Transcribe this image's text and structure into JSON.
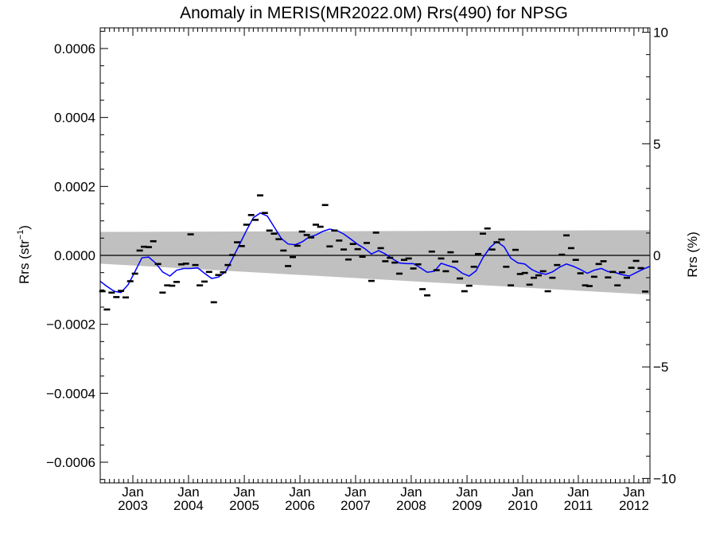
{
  "chart_data": {
    "type": "scatter",
    "title": "Anomaly in MERIS(MR2022.0M) Rrs(490) for NPSG",
    "ylabel_left": "Rrs (str",
    "ylabel_left_sup": "−1",
    "ylabel_left_close": ")",
    "ylabel_right": "Rrs (%)",
    "x_range": [
      "2002-06-01",
      "2012-04-15"
    ],
    "ylim_left": [
      -0.00066,
      0.00066
    ],
    "ylim_right": [
      -10.2,
      10.2
    ],
    "left_ticks": [
      {
        "value": 0.0006,
        "label": "0.0006"
      },
      {
        "value": 0.0004,
        "label": "0.0004"
      },
      {
        "value": 0.0002,
        "label": "0.0002"
      },
      {
        "value": 0.0,
        "label": "0.0000"
      },
      {
        "value": -0.0002,
        "label": "−0.0002"
      },
      {
        "value": -0.0004,
        "label": "−0.0004"
      },
      {
        "value": -0.0006,
        "label": "−0.0006"
      }
    ],
    "right_ticks": [
      {
        "value": 10,
        "label": "10"
      },
      {
        "value": 5,
        "label": "5"
      },
      {
        "value": 0,
        "label": "0"
      },
      {
        "value": -5,
        "label": "−5"
      },
      {
        "value": -10,
        "label": "−10"
      }
    ],
    "x_ticks": [
      {
        "date": "2003-01-01",
        "month": "Jan",
        "year": "2003"
      },
      {
        "date": "2004-01-01",
        "month": "Jan",
        "year": "2004"
      },
      {
        "date": "2005-01-01",
        "month": "Jan",
        "year": "2005"
      },
      {
        "date": "2006-01-01",
        "month": "Jan",
        "year": "2006"
      },
      {
        "date": "2007-01-01",
        "month": "Jan",
        "year": "2007"
      },
      {
        "date": "2008-01-01",
        "month": "Jan",
        "year": "2008"
      },
      {
        "date": "2009-01-01",
        "month": "Jan",
        "year": "2009"
      },
      {
        "date": "2010-01-01",
        "month": "Jan",
        "year": "2010"
      },
      {
        "date": "2011-01-01",
        "month": "Jan",
        "year": "2011"
      },
      {
        "date": "2012-01-01",
        "month": "Jan",
        "year": "2012"
      }
    ],
    "band": {
      "color": "#c0c0c0",
      "upper": [
        {
          "date": "2002-06-01",
          "y": 6.8e-05
        },
        {
          "date": "2012-04-15",
          "y": 7.3e-05
        }
      ],
      "lower": [
        {
          "date": "2002-06-01",
          "y": -2.4e-05
        },
        {
          "date": "2012-04-15",
          "y": -0.000114
        }
      ]
    },
    "zero_line": true,
    "smoothed_color": "#0000ff",
    "marker_color": "#000000",
    "monthly_points": [
      {
        "date": "2002-06-15",
        "y": -0.000104
      },
      {
        "date": "2002-07-15",
        "y": -0.000157
      },
      {
        "date": "2002-08-15",
        "y": -0.000108
      },
      {
        "date": "2002-09-15",
        "y": -0.000121
      },
      {
        "date": "2002-10-15",
        "y": -0.000103
      },
      {
        "date": "2002-11-15",
        "y": -0.000122
      },
      {
        "date": "2002-12-15",
        "y": -7.5e-05
      },
      {
        "date": "2003-01-15",
        "y": -5.3e-05
      },
      {
        "date": "2003-02-15",
        "y": 1.4e-05
      },
      {
        "date": "2003-03-15",
        "y": 2.5e-05
      },
      {
        "date": "2003-04-15",
        "y": 2.4e-05
      },
      {
        "date": "2003-05-15",
        "y": 4.1e-05
      },
      {
        "date": "2003-06-15",
        "y": -2.5e-05
      },
      {
        "date": "2003-07-15",
        "y": -0.000108
      },
      {
        "date": "2003-08-15",
        "y": -8.7e-05
      },
      {
        "date": "2003-09-15",
        "y": -8.8e-05
      },
      {
        "date": "2003-10-15",
        "y": -7.7e-05
      },
      {
        "date": "2003-11-15",
        "y": -2.6e-05
      },
      {
        "date": "2003-12-15",
        "y": -2.4e-05
      },
      {
        "date": "2004-01-15",
        "y": 6.1e-05
      },
      {
        "date": "2004-02-15",
        "y": -2.8e-05
      },
      {
        "date": "2004-03-15",
        "y": -8.7e-05
      },
      {
        "date": "2004-04-15",
        "y": -7.6e-05
      },
      {
        "date": "2004-05-15",
        "y": -4.8e-05
      },
      {
        "date": "2004-06-15",
        "y": -0.000136
      },
      {
        "date": "2004-07-15",
        "y": -5.7e-05
      },
      {
        "date": "2004-08-15",
        "y": -4.9e-05
      },
      {
        "date": "2004-09-15",
        "y": -2.8e-05
      },
      {
        "date": "2004-10-15",
        "y": 1e-06
      },
      {
        "date": "2004-11-15",
        "y": 3.8e-05
      },
      {
        "date": "2004-12-15",
        "y": 2.7e-05
      },
      {
        "date": "2005-01-15",
        "y": 8.9e-05
      },
      {
        "date": "2005-02-15",
        "y": 0.000117
      },
      {
        "date": "2005-03-15",
        "y": 0.000103
      },
      {
        "date": "2005-04-15",
        "y": 0.000174
      },
      {
        "date": "2005-05-15",
        "y": 0.000123
      },
      {
        "date": "2005-06-15",
        "y": 7.2e-05
      },
      {
        "date": "2005-07-15",
        "y": 6.3e-05
      },
      {
        "date": "2005-08-15",
        "y": 4.7e-05
      },
      {
        "date": "2005-09-15",
        "y": 1.4e-05
      },
      {
        "date": "2005-10-15",
        "y": -3.1e-05
      },
      {
        "date": "2005-11-15",
        "y": -5e-06
      },
      {
        "date": "2005-12-15",
        "y": 2.8e-05
      },
      {
        "date": "2006-01-15",
        "y": 6.9e-05
      },
      {
        "date": "2006-02-15",
        "y": 5.9e-05
      },
      {
        "date": "2006-03-15",
        "y": 5.2e-05
      },
      {
        "date": "2006-04-15",
        "y": 8.9e-05
      },
      {
        "date": "2006-05-15",
        "y": 8.3e-05
      },
      {
        "date": "2006-06-15",
        "y": 0.000146
      },
      {
        "date": "2006-07-15",
        "y": 2.6e-05
      },
      {
        "date": "2006-08-15",
        "y": 7.2e-05
      },
      {
        "date": "2006-09-15",
        "y": 4.3e-05
      },
      {
        "date": "2006-10-15",
        "y": 1.7e-05
      },
      {
        "date": "2006-11-15",
        "y": -1.2e-05
      },
      {
        "date": "2006-12-15",
        "y": 3.3e-05
      },
      {
        "date": "2007-01-15",
        "y": 1.8e-05
      },
      {
        "date": "2007-02-15",
        "y": -4e-06
      },
      {
        "date": "2007-03-15",
        "y": 3.6e-05
      },
      {
        "date": "2007-04-15",
        "y": -7.4e-05
      },
      {
        "date": "2007-05-15",
        "y": 6.6e-05
      },
      {
        "date": "2007-06-15",
        "y": 2.1e-05
      },
      {
        "date": "2007-07-15",
        "y": -1.7e-05
      },
      {
        "date": "2007-08-15",
        "y": -7e-06
      },
      {
        "date": "2007-09-15",
        "y": -2.1e-05
      },
      {
        "date": "2007-10-15",
        "y": -5.3e-05
      },
      {
        "date": "2007-11-15",
        "y": -1.3e-05
      },
      {
        "date": "2007-12-15",
        "y": -9e-06
      },
      {
        "date": "2008-01-15",
        "y": -3.8e-05
      },
      {
        "date": "2008-02-15",
        "y": -2.6e-05
      },
      {
        "date": "2008-03-15",
        "y": -9.8e-05
      },
      {
        "date": "2008-04-15",
        "y": -0.000116
      },
      {
        "date": "2008-05-15",
        "y": 1.1e-05
      },
      {
        "date": "2008-06-15",
        "y": -4.3e-05
      },
      {
        "date": "2008-07-15",
        "y": -9e-06
      },
      {
        "date": "2008-08-15",
        "y": -4.6e-05
      },
      {
        "date": "2008-09-15",
        "y": 9e-06
      },
      {
        "date": "2008-10-15",
        "y": -1.8e-05
      },
      {
        "date": "2008-11-15",
        "y": -6.7e-05
      },
      {
        "date": "2008-12-15",
        "y": -0.000104
      },
      {
        "date": "2009-01-15",
        "y": -8.8e-05
      },
      {
        "date": "2009-02-15",
        "y": -3.3e-05
      },
      {
        "date": "2009-03-15",
        "y": 4e-06
      },
      {
        "date": "2009-04-15",
        "y": 6.3e-05
      },
      {
        "date": "2009-05-15",
        "y": 7.8e-05
      },
      {
        "date": "2009-06-15",
        "y": 1.7e-05
      },
      {
        "date": "2009-07-15",
        "y": 3.8e-05
      },
      {
        "date": "2009-08-15",
        "y": 4.6e-05
      },
      {
        "date": "2009-09-15",
        "y": -3.3e-05
      },
      {
        "date": "2009-10-15",
        "y": -8.7e-05
      },
      {
        "date": "2009-11-15",
        "y": 1.6e-05
      },
      {
        "date": "2009-12-15",
        "y": -5.4e-05
      },
      {
        "date": "2010-01-15",
        "y": -5.1e-05
      },
      {
        "date": "2010-02-15",
        "y": -8.5e-05
      },
      {
        "date": "2010-03-15",
        "y": -6.5e-05
      },
      {
        "date": "2010-04-15",
        "y": -5.8e-05
      },
      {
        "date": "2010-05-15",
        "y": -4.6e-05
      },
      {
        "date": "2010-06-15",
        "y": -0.000104
      },
      {
        "date": "2010-07-15",
        "y": -6.5e-05
      },
      {
        "date": "2010-08-15",
        "y": -2.8e-05
      },
      {
        "date": "2010-09-15",
        "y": 2e-06
      },
      {
        "date": "2010-10-15",
        "y": 5.8e-05
      },
      {
        "date": "2010-11-15",
        "y": 2.1e-05
      },
      {
        "date": "2010-12-15",
        "y": -1.3e-05
      },
      {
        "date": "2011-01-15",
        "y": -5.2e-05
      },
      {
        "date": "2011-02-15",
        "y": -8.7e-05
      },
      {
        "date": "2011-03-15",
        "y": -8.9e-05
      },
      {
        "date": "2011-04-15",
        "y": -6.2e-05
      },
      {
        "date": "2011-05-15",
        "y": -2.5e-05
      },
      {
        "date": "2011-06-15",
        "y": -1.7e-05
      },
      {
        "date": "2011-07-15",
        "y": -6.4e-05
      },
      {
        "date": "2011-08-15",
        "y": -4.8e-05
      },
      {
        "date": "2011-09-15",
        "y": -8.7e-05
      },
      {
        "date": "2011-10-15",
        "y": -4.9e-05
      },
      {
        "date": "2011-11-15",
        "y": -6.5e-05
      },
      {
        "date": "2011-12-15",
        "y": -3.6e-05
      },
      {
        "date": "2012-01-15",
        "y": -1.6e-05
      },
      {
        "date": "2012-02-15",
        "y": -3.7e-05
      },
      {
        "date": "2012-03-15",
        "y": -0.000105
      }
    ],
    "smoothed_line": [
      {
        "date": "2002-06-01",
        "y": -7.5e-05
      },
      {
        "date": "2002-07-15",
        "y": -9e-05
      },
      {
        "date": "2002-09-01",
        "y": -0.000104
      },
      {
        "date": "2002-10-15",
        "y": -0.000108
      },
      {
        "date": "2002-12-01",
        "y": -8.5e-05
      },
      {
        "date": "2003-01-15",
        "y": -4.7e-05
      },
      {
        "date": "2003-03-01",
        "y": -7e-06
      },
      {
        "date": "2003-04-15",
        "y": -5e-06
      },
      {
        "date": "2003-06-01",
        "y": -2.3e-05
      },
      {
        "date": "2003-07-15",
        "y": -4.8e-05
      },
      {
        "date": "2003-09-01",
        "y": -6e-05
      },
      {
        "date": "2003-10-15",
        "y": -4.3e-05
      },
      {
        "date": "2003-12-01",
        "y": -3.8e-05
      },
      {
        "date": "2004-01-15",
        "y": -3.8e-05
      },
      {
        "date": "2004-03-01",
        "y": -3.6e-05
      },
      {
        "date": "2004-04-15",
        "y": -5.2e-05
      },
      {
        "date": "2004-06-01",
        "y": -6.7e-05
      },
      {
        "date": "2004-07-15",
        "y": -6.3e-05
      },
      {
        "date": "2004-09-01",
        "y": -4.7e-05
      },
      {
        "date": "2004-10-15",
        "y": -1e-05
      },
      {
        "date": "2004-12-01",
        "y": 3.2e-05
      },
      {
        "date": "2005-01-15",
        "y": 7.2e-05
      },
      {
        "date": "2005-03-01",
        "y": 0.000109
      },
      {
        "date": "2005-04-15",
        "y": 0.000123
      },
      {
        "date": "2005-06-01",
        "y": 0.000114
      },
      {
        "date": "2005-07-15",
        "y": 8.3e-05
      },
      {
        "date": "2005-09-01",
        "y": 4.9e-05
      },
      {
        "date": "2005-10-15",
        "y": 3.3e-05
      },
      {
        "date": "2005-12-01",
        "y": 3.1e-05
      },
      {
        "date": "2006-01-15",
        "y": 3.9e-05
      },
      {
        "date": "2006-03-01",
        "y": 5.3e-05
      },
      {
        "date": "2006-04-15",
        "y": 5.9e-05
      },
      {
        "date": "2006-06-01",
        "y": 7e-05
      },
      {
        "date": "2006-07-15",
        "y": 7.6e-05
      },
      {
        "date": "2006-09-01",
        "y": 7.2e-05
      },
      {
        "date": "2006-10-15",
        "y": 6.2e-05
      },
      {
        "date": "2006-12-01",
        "y": 4.7e-05
      },
      {
        "date": "2007-01-15",
        "y": 3.2e-05
      },
      {
        "date": "2007-03-01",
        "y": 2e-05
      },
      {
        "date": "2007-04-15",
        "y": 4e-06
      },
      {
        "date": "2007-06-01",
        "y": 1.4e-05
      },
      {
        "date": "2007-07-15",
        "y": 4e-06
      },
      {
        "date": "2007-09-01",
        "y": -1e-05
      },
      {
        "date": "2007-10-15",
        "y": -2.2e-05
      },
      {
        "date": "2007-12-01",
        "y": -2.4e-05
      },
      {
        "date": "2008-01-15",
        "y": -2.4e-05
      },
      {
        "date": "2008-03-01",
        "y": -3.6e-05
      },
      {
        "date": "2008-04-15",
        "y": -4.9e-05
      },
      {
        "date": "2008-06-01",
        "y": -4.6e-05
      },
      {
        "date": "2008-07-15",
        "y": -2.3e-05
      },
      {
        "date": "2008-09-01",
        "y": -3e-05
      },
      {
        "date": "2008-10-15",
        "y": -3.6e-05
      },
      {
        "date": "2008-12-01",
        "y": -5.2e-05
      },
      {
        "date": "2009-01-15",
        "y": -6e-05
      },
      {
        "date": "2009-03-01",
        "y": -4.5e-05
      },
      {
        "date": "2009-04-15",
        "y": -7e-06
      },
      {
        "date": "2009-06-01",
        "y": 2.3e-05
      },
      {
        "date": "2009-07-15",
        "y": 4e-05
      },
      {
        "date": "2009-09-01",
        "y": 2.5e-05
      },
      {
        "date": "2009-10-15",
        "y": -8e-06
      },
      {
        "date": "2009-12-01",
        "y": -2.2e-05
      },
      {
        "date": "2010-01-15",
        "y": -2.5e-05
      },
      {
        "date": "2010-03-01",
        "y": -4.1e-05
      },
      {
        "date": "2010-04-15",
        "y": -5e-05
      },
      {
        "date": "2010-06-01",
        "y": -5.5e-05
      },
      {
        "date": "2010-07-15",
        "y": -4.8e-05
      },
      {
        "date": "2010-09-01",
        "y": -3.4e-05
      },
      {
        "date": "2010-10-15",
        "y": -2.5e-05
      },
      {
        "date": "2010-12-01",
        "y": -3.2e-05
      },
      {
        "date": "2011-01-15",
        "y": -4.1e-05
      },
      {
        "date": "2011-03-01",
        "y": -5.2e-05
      },
      {
        "date": "2011-04-15",
        "y": -4.3e-05
      },
      {
        "date": "2011-06-01",
        "y": -3.8e-05
      },
      {
        "date": "2011-07-15",
        "y": -4.7e-05
      },
      {
        "date": "2011-09-01",
        "y": -5e-05
      },
      {
        "date": "2011-10-15",
        "y": -5.6e-05
      },
      {
        "date": "2011-12-01",
        "y": -6e-05
      },
      {
        "date": "2012-01-15",
        "y": -5e-05
      },
      {
        "date": "2012-03-01",
        "y": -4e-05
      },
      {
        "date": "2012-04-15",
        "y": -3.2e-05
      }
    ]
  }
}
